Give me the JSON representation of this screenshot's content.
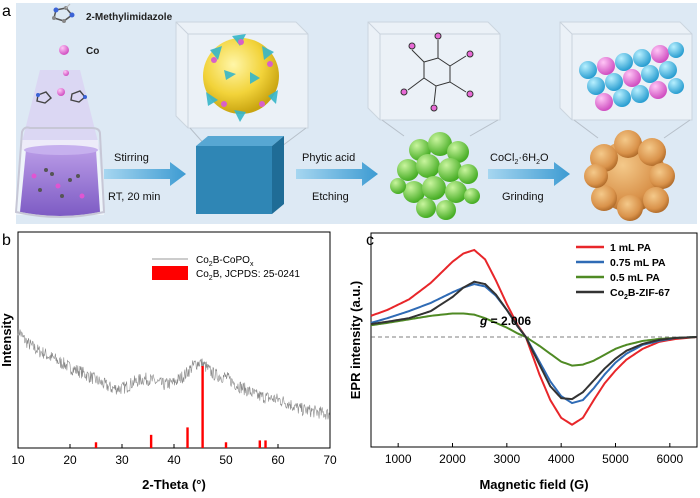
{
  "panel_a": {
    "label": "a",
    "legend_ligand": "2-Methylimidazole",
    "legend_metal": "Co",
    "step1_top": "Stirring",
    "step1_bottom": "RT, 20 min",
    "step2_top": "Phytic acid",
    "step2_bottom": "Etching",
    "step3_top": "CoCl",
    "step3_top_sub": "2",
    "step3_top_rest": "·6H",
    "step3_top_sub2": "2",
    "step3_top_end": "O",
    "step3_bottom": "Grinding",
    "colors": {
      "background": "#dde9f4",
      "cube": "#2f86b5",
      "green": "#69cf3e",
      "product": "#d99a57",
      "arrow": "#4aa4d6"
    }
  },
  "chart_data": [
    {
      "type": "line",
      "panel": "b",
      "xlabel": "2-Theta (°)",
      "ylabel": "Intensity",
      "xlim": [
        10,
        70
      ],
      "ylim": [
        0,
        1
      ],
      "xticks": [
        "10",
        "20",
        "30",
        "40",
        "50",
        "60",
        "70"
      ],
      "legend": [
        {
          "name": "Co",
          "sub": "2",
          "rest": "B-CoPO",
          "sub2": "x",
          "tail": "",
          "color": "#999999",
          "kind": "line"
        },
        {
          "name": "Co",
          "sub": "2",
          "rest": "B, JCPDS: 25-0241",
          "sub2": "",
          "tail": "",
          "color": "#ff0000",
          "kind": "bar"
        }
      ],
      "series": [
        {
          "name": "Co2B-CoPOx",
          "color": "#888888",
          "x": [
            10,
            11,
            12,
            13,
            14,
            15,
            16,
            17,
            18,
            19,
            20,
            22,
            24,
            26,
            28,
            30,
            31,
            32,
            33,
            34,
            35,
            36,
            37,
            38,
            40,
            42,
            43,
            44,
            45,
            46,
            47,
            48,
            50,
            52,
            54,
            56,
            58,
            60,
            62,
            64,
            66,
            68,
            70
          ],
          "y": [
            0.63,
            0.58,
            0.55,
            0.53,
            0.51,
            0.5,
            0.48,
            0.47,
            0.45,
            0.44,
            0.42,
            0.4,
            0.37,
            0.34,
            0.31,
            0.31,
            0.32,
            0.34,
            0.35,
            0.36,
            0.36,
            0.35,
            0.34,
            0.33,
            0.34,
            0.38,
            0.41,
            0.44,
            0.45,
            0.43,
            0.4,
            0.38,
            0.37,
            0.33,
            0.3,
            0.27,
            0.26,
            0.25,
            0.23,
            0.2,
            0.19,
            0.18,
            0.17
          ],
          "noise": 0.035
        }
      ],
      "reference_bars": {
        "name": "Co2B, JCPDS: 25-0241",
        "color": "#ff0000",
        "x": [
          25.0,
          35.6,
          42.6,
          45.5,
          50.0,
          56.5,
          57.6
        ],
        "y": [
          0.02,
          0.06,
          0.1,
          0.43,
          0.02,
          0.03,
          0.03
        ]
      }
    },
    {
      "type": "line",
      "panel": "c",
      "xlabel": "Magnetic field (G)",
      "ylabel": "EPR intensity (a.u.)",
      "xlim": [
        500,
        6500
      ],
      "ylim": [
        -1.0,
        1.0
      ],
      "xticks": [
        "1000",
        "2000",
        "3000",
        "4000",
        "5000",
        "6000"
      ],
      "annotation": {
        "g_label": "g",
        "g_value": " = 2.006",
        "baseline_x": 3350
      },
      "series": [
        {
          "name": "1 mL PA",
          "color": "#e8262a",
          "x": [
            500,
            800,
            1200,
            1600,
            2000,
            2200,
            2400,
            2600,
            2800,
            3000,
            3200,
            3350,
            3600,
            3800,
            4000,
            4200,
            4400,
            4600,
            4800,
            5000,
            5200,
            5500,
            5800,
            6100,
            6500
          ],
          "y": [
            0.18,
            0.23,
            0.32,
            0.46,
            0.64,
            0.71,
            0.74,
            0.66,
            0.48,
            0.28,
            0.1,
            0.0,
            -0.38,
            -0.64,
            -0.82,
            -0.89,
            -0.82,
            -0.64,
            -0.47,
            -0.34,
            -0.23,
            -0.12,
            -0.05,
            -0.02,
            0.0
          ]
        },
        {
          "name": "0.75 mL PA",
          "color": "#2f6bb5",
          "x": [
            500,
            800,
            1200,
            1600,
            2000,
            2200,
            2400,
            2600,
            2800,
            3000,
            3200,
            3350,
            3600,
            3800,
            4000,
            4200,
            4400,
            4600,
            4800,
            5000,
            5200,
            5500,
            5800,
            6100,
            6500
          ],
          "y": [
            0.12,
            0.16,
            0.22,
            0.29,
            0.38,
            0.42,
            0.45,
            0.43,
            0.35,
            0.23,
            0.09,
            0.0,
            -0.25,
            -0.45,
            -0.6,
            -0.67,
            -0.64,
            -0.52,
            -0.38,
            -0.26,
            -0.17,
            -0.08,
            -0.04,
            -0.01,
            0.0
          ]
        },
        {
          "name": "0.5 mL PA",
          "color": "#4f8a24",
          "x": [
            500,
            800,
            1200,
            1600,
            2000,
            2200,
            2400,
            2600,
            2800,
            3000,
            3200,
            3350,
            3600,
            3800,
            4000,
            4200,
            4400,
            4600,
            4800,
            5000,
            5200,
            5500,
            5800,
            6100,
            6500
          ],
          "y": [
            0.1,
            0.12,
            0.15,
            0.18,
            0.2,
            0.2,
            0.19,
            0.16,
            0.12,
            0.08,
            0.03,
            0.0,
            -0.09,
            -0.17,
            -0.25,
            -0.29,
            -0.28,
            -0.24,
            -0.18,
            -0.12,
            -0.08,
            -0.04,
            -0.02,
            -0.01,
            0.0
          ]
        },
        {
          "name": "Co",
          "name_sub": "2",
          "name_rest": "B-ZIF-67",
          "color": "#333333",
          "x": [
            500,
            800,
            1200,
            1600,
            2000,
            2200,
            2400,
            2600,
            2800,
            3000,
            3200,
            3350,
            3600,
            3800,
            4000,
            4200,
            4400,
            4600,
            4800,
            5000,
            5200,
            5500,
            5800,
            6100,
            6500
          ],
          "y": [
            0.11,
            0.13,
            0.16,
            0.22,
            0.34,
            0.42,
            0.47,
            0.45,
            0.36,
            0.23,
            0.09,
            0.0,
            -0.28,
            -0.5,
            -0.62,
            -0.63,
            -0.56,
            -0.44,
            -0.32,
            -0.22,
            -0.14,
            -0.07,
            -0.03,
            -0.01,
            0.0
          ]
        }
      ]
    }
  ],
  "panel_labels": {
    "b": "b",
    "c": "c"
  }
}
